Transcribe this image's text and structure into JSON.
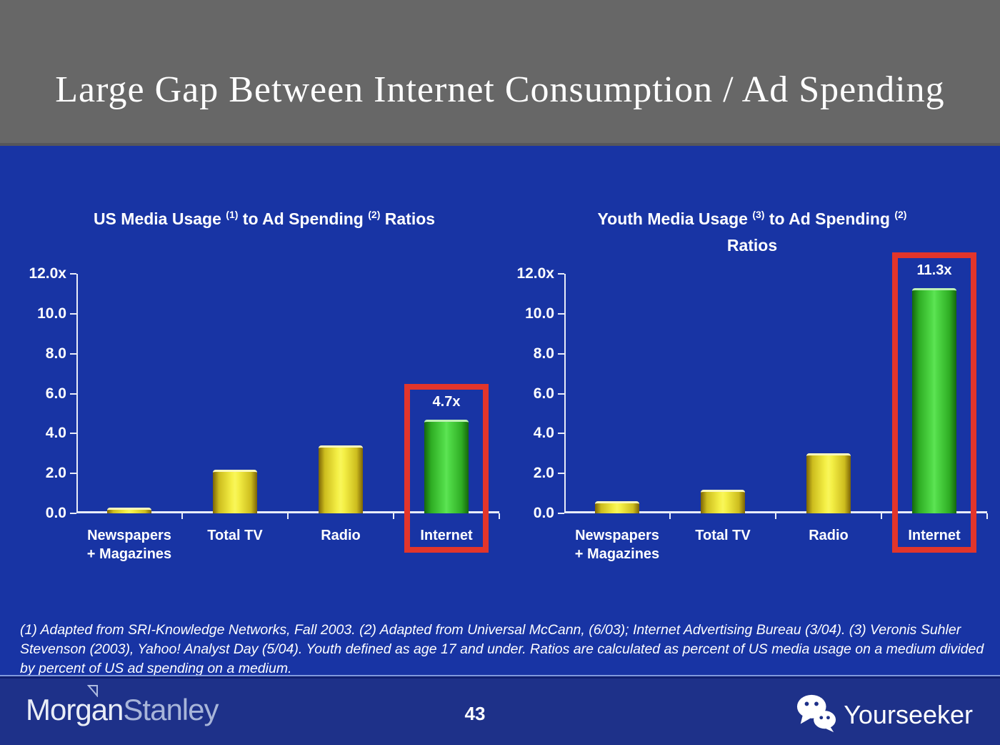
{
  "slide": {
    "title": "Large Gap Between Internet Consumption / Ad Spending",
    "page_number": "43",
    "footnote": "(1) Adapted from SRI-Knowledge Networks, Fall 2003.  (2) Adapted from Universal McCann, (6/03); Internet Advertising Bureau (3/04). (3) Veronis Suhler Stevenson (2003), Yahoo! Analyst Day (5/04).  Youth defined as age 17 and under.  Ratios are calculated as percent of US media usage on a medium divided by percent of US ad spending on a medium."
  },
  "footer": {
    "logo_part1": "Morgan",
    "logo_part2": "Stanley",
    "watermark_text": "Yourseeker"
  },
  "icons": {
    "watermark": "wechat-icon",
    "logo_flag": "triangle-flag-icon"
  },
  "colors": {
    "header_bg": "#676767",
    "body_bg": "#1834a4",
    "footer_bg": "#1e3189",
    "title_text": "#ffffff",
    "axis_line": "#e8ecf8",
    "bar_yellow_center": "#f9f65a",
    "bar_yellow_edge": "#7c6405",
    "bar_green_center": "#5ee455",
    "bar_green_edge": "#15670d",
    "highlight_red": "#e2352b"
  },
  "chart_data": [
    {
      "type": "bar",
      "title_segments": [
        {
          "t": "US Media Usage "
        },
        {
          "s": "(1)"
        },
        {
          "t": " to Ad Spending "
        },
        {
          "s": "(2)"
        },
        {
          "t": " Ratios"
        }
      ],
      "categories": [
        [
          "Newspapers",
          "+ Magazines"
        ],
        [
          "Total TV"
        ],
        [
          "Radio"
        ],
        [
          "Internet"
        ]
      ],
      "values": [
        0.3,
        2.2,
        3.4,
        4.7
      ],
      "highlight_index": 3,
      "highlight_label": "4.7x",
      "ylim": [
        0,
        12
      ],
      "yticks": [
        {
          "label": "12.0x",
          "value": 12
        },
        {
          "label": "10.0",
          "value": 10
        },
        {
          "label": "8.0",
          "value": 8
        },
        {
          "label": "6.0",
          "value": 6
        },
        {
          "label": "4.0",
          "value": 4
        },
        {
          "label": "2.0",
          "value": 2
        },
        {
          "label": "0.0",
          "value": 0
        }
      ],
      "grid": false,
      "legend": "none"
    },
    {
      "type": "bar",
      "title_segments": [
        {
          "t": "Youth Media Usage "
        },
        {
          "s": "(3)"
        },
        {
          "t": " to Ad Spending "
        },
        {
          "s": "(2)"
        }
      ],
      "title_line2": "Ratios",
      "categories": [
        [
          "Newspapers",
          "+ Magazines"
        ],
        [
          "Total TV"
        ],
        [
          "Radio"
        ],
        [
          "Internet"
        ]
      ],
      "values": [
        0.6,
        1.2,
        3.0,
        11.3
      ],
      "highlight_index": 3,
      "highlight_label": "11.3x",
      "ylim": [
        0,
        12
      ],
      "yticks": [
        {
          "label": "12.0x",
          "value": 12
        },
        {
          "label": "10.0",
          "value": 10
        },
        {
          "label": "8.0",
          "value": 8
        },
        {
          "label": "6.0",
          "value": 6
        },
        {
          "label": "4.0",
          "value": 4
        },
        {
          "label": "2.0",
          "value": 2
        },
        {
          "label": "0.0",
          "value": 0
        }
      ],
      "grid": false,
      "legend": "none"
    }
  ]
}
